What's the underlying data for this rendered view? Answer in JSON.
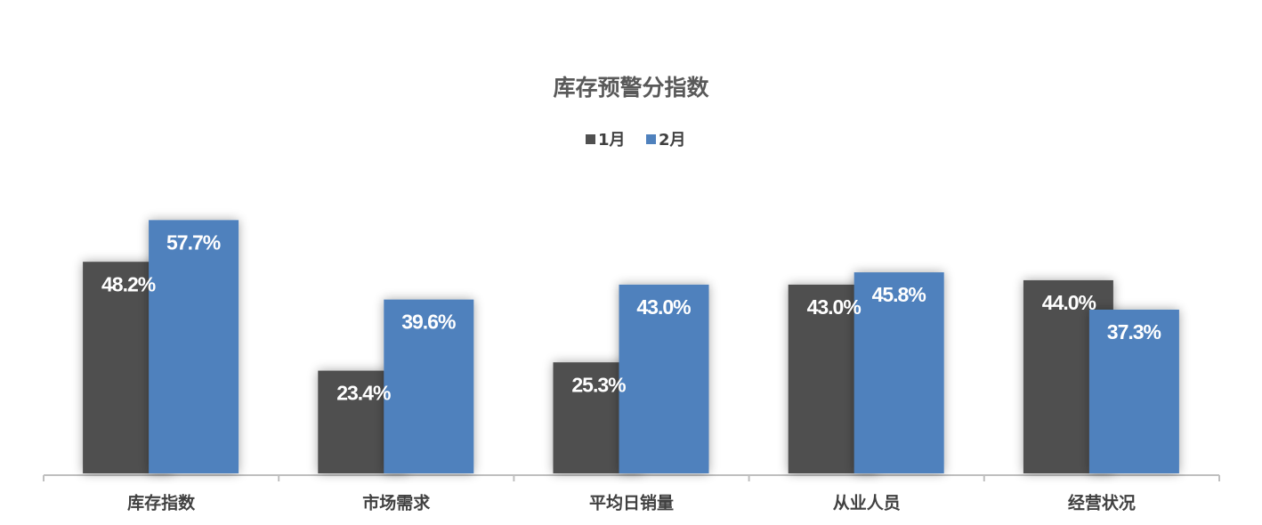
{
  "chart_data": {
    "type": "bar",
    "title": "库存预警分指数",
    "categories": [
      "库存指数",
      "市场需求",
      "平均日销量",
      "从业人员",
      "经营状况"
    ],
    "series": [
      {
        "name": "1月",
        "color": "#505050",
        "values": [
          48.2,
          23.4,
          25.3,
          43.0,
          44.0
        ],
        "value_labels": [
          "48.2%",
          "23.4%",
          "25.3%",
          "43.0%",
          "44.0%"
        ]
      },
      {
        "name": "2月",
        "color": "#4f81bd",
        "values": [
          57.7,
          39.6,
          43.0,
          45.8,
          37.3
        ],
        "value_labels": [
          "57.7%",
          "39.6%",
          "43.0%",
          "45.8%",
          "37.3%"
        ]
      }
    ],
    "ylim": [
      0,
      60
    ],
    "grid": false,
    "legend": "top"
  }
}
